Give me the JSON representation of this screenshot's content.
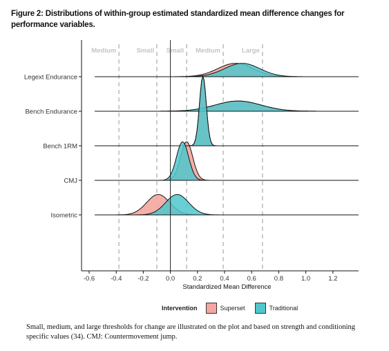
{
  "figure_title": "Figure 2: Distributions of within-group estimated standardized mean difference changes for performance variables.",
  "caption": "Small, medium, and large thresholds for change are illustrated on the plot and based on strength and conditioning specific values (34). CMJ: Countermovement jump.",
  "legend": {
    "title": "Intervention",
    "items": [
      {
        "label": "Superset",
        "color": "#F4A6A0"
      },
      {
        "label": "Traditional",
        "color": "#4FC7CC"
      }
    ]
  },
  "chart_data": {
    "type": "ridgeline",
    "xlabel": "Standardized Mean Difference",
    "xlim": [
      -0.65,
      1.38
    ],
    "xticks": [
      -0.6,
      -0.4,
      -0.2,
      0.0,
      0.2,
      0.4,
      0.6,
      0.8,
      1.0,
      1.2
    ],
    "xtick_labels": [
      "-0.6",
      "-0.4",
      "-0.2",
      "0.0",
      "0.2",
      "0.4",
      "0.6",
      "0.8",
      "1.0",
      "1.2"
    ],
    "categories": [
      "Legext Endurance",
      "Bench Endurance",
      "Bench 1RM",
      "CMJ",
      "Isometric"
    ],
    "thresholds": [
      {
        "x": -0.38,
        "label": "Medium"
      },
      {
        "x": -0.1,
        "label": "Small"
      },
      {
        "x": 0.12,
        "label": "Small"
      },
      {
        "x": 0.39,
        "label": "Medium"
      },
      {
        "x": 0.68,
        "label": "Large"
      }
    ],
    "series": [
      {
        "name": "Superset",
        "color": "#F4A6A0",
        "densities": [
          {
            "category": "Legext Endurance",
            "mean": 0.48,
            "sd": 0.13,
            "range": [
              -0.55,
              1.15
            ]
          },
          {
            "category": "Bench Endurance",
            "mean": 0.5,
            "sd": 0.17,
            "range": [
              -0.55,
              1.38
            ]
          },
          {
            "category": "Bench 1RM",
            "mean": 0.24,
            "sd": 0.025,
            "range": [
              -0.55,
              1.38
            ]
          },
          {
            "category": "CMJ",
            "mean": 0.12,
            "sd": 0.045,
            "range": [
              -0.55,
              1.38
            ]
          },
          {
            "category": "Isometric",
            "mean": -0.09,
            "sd": 0.085,
            "range": [
              -0.55,
              1.38
            ]
          }
        ]
      },
      {
        "name": "Traditional",
        "color": "#4FC7CC",
        "densities": [
          {
            "category": "Legext Endurance",
            "mean": 0.53,
            "sd": 0.13,
            "range": [
              -0.55,
              1.15
            ]
          },
          {
            "category": "Bench Endurance",
            "mean": 0.5,
            "sd": 0.17,
            "range": [
              -0.55,
              1.38
            ]
          },
          {
            "category": "Bench 1RM",
            "mean": 0.24,
            "sd": 0.025,
            "range": [
              -0.55,
              1.38
            ]
          },
          {
            "category": "CMJ",
            "mean": 0.09,
            "sd": 0.045,
            "range": [
              -0.55,
              1.38
            ]
          },
          {
            "category": "Isometric",
            "mean": 0.05,
            "sd": 0.085,
            "range": [
              -0.55,
              1.38
            ]
          }
        ]
      }
    ]
  }
}
